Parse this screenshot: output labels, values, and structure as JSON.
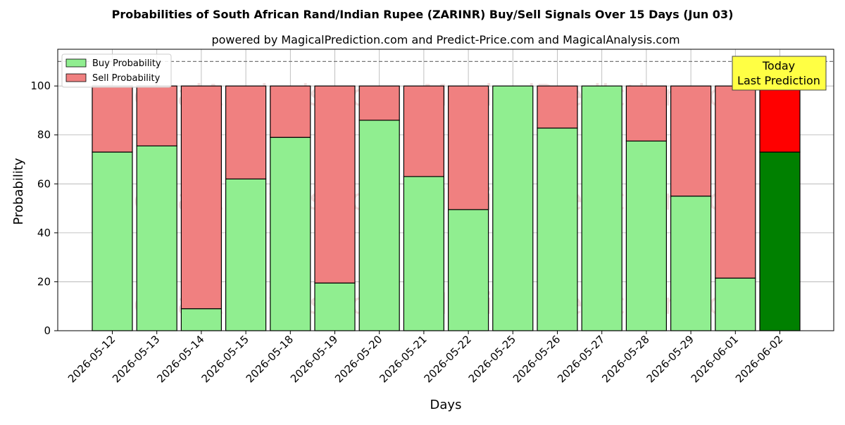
{
  "chart_data": {
    "type": "bar",
    "stacked": true,
    "title": "Probabilities of South African Rand/Indian Rupee (ZARINR) Buy/Sell Signals Over 15 Days (Jun 03)",
    "subtitle": "powered by MagicalPrediction.com and Predict-Price.com and MagicalAnalysis.com",
    "xlabel": "Days",
    "ylabel": "Probability",
    "ylim": [
      0,
      115
    ],
    "yticks": [
      "0",
      "20",
      "40",
      "60",
      "80",
      "100"
    ],
    "grid": true,
    "legend_position": "top-left",
    "reference_line": 110,
    "categories": [
      "2026-05-12",
      "2026-05-13",
      "2026-05-14",
      "2026-05-15",
      "2026-05-18",
      "2026-05-19",
      "2026-05-20",
      "2026-05-21",
      "2026-05-22",
      "2026-05-25",
      "2026-05-26",
      "2026-05-27",
      "2026-05-28",
      "2026-05-29",
      "2026-06-01",
      "2026-06-02"
    ],
    "series": [
      {
        "name": "Buy Probability",
        "color": "#90ee90",
        "values": [
          73,
          75.5,
          9,
          62,
          79,
          19.5,
          86,
          63,
          49.5,
          100,
          82.8,
          100,
          77.5,
          55,
          21.5,
          73
        ]
      },
      {
        "name": "Sell Probability",
        "color": "#f08080",
        "values": [
          27,
          24.5,
          91,
          38,
          21,
          80.5,
          14,
          37,
          50.5,
          0,
          17.2,
          0,
          22.5,
          45,
          78.5,
          27
        ]
      }
    ],
    "highlight": {
      "index": 15,
      "buy_color": "#008000",
      "sell_color": "#ff0000"
    },
    "annotation": {
      "line1": "Today",
      "line2": "Last Prediction",
      "background": "#ffff44"
    },
    "watermarks": [
      "MagicalAnalysis.com",
      "MagicalPrediction.com"
    ]
  }
}
